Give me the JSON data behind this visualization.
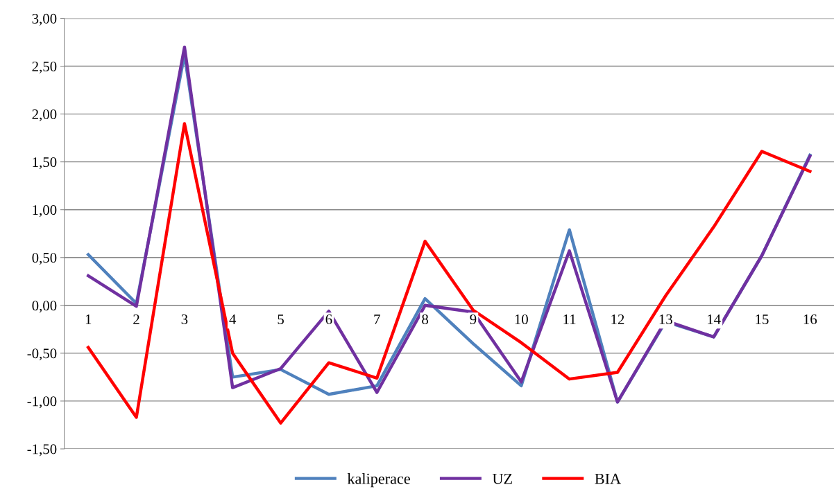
{
  "chart_data": {
    "type": "line",
    "categories": [
      "1",
      "2",
      "3",
      "4",
      "5",
      "6",
      "7",
      "8",
      "9",
      "10",
      "11",
      "12",
      "13",
      "14",
      "15",
      "16"
    ],
    "series": [
      {
        "name": "kaliperace",
        "color": "#4f81bd",
        "values": [
          0.53,
          0.02,
          2.62,
          -0.75,
          -0.67,
          -0.93,
          -0.84,
          0.07,
          -0.4,
          -0.84,
          0.79,
          -1.01,
          -0.17,
          -0.33,
          0.52,
          1.57
        ]
      },
      {
        "name": "UZ",
        "color": "#7030a0",
        "values": [
          0.31,
          -0.01,
          2.7,
          -0.86,
          -0.66,
          -0.06,
          -0.91,
          0.0,
          -0.07,
          -0.8,
          0.57,
          -1.01,
          -0.16,
          -0.33,
          0.52,
          1.56
        ]
      },
      {
        "name": "BIA",
        "color": "#ff0000",
        "values": [
          -0.44,
          -1.17,
          1.9,
          -0.5,
          -1.23,
          -0.6,
          -0.76,
          0.67,
          -0.05,
          -0.39,
          -0.77,
          -0.7,
          0.1,
          0.82,
          1.61,
          1.4
        ]
      }
    ],
    "ylim": [
      -1.5,
      3.0
    ],
    "yticks": [
      {
        "value": -1.5,
        "label": "-1,50"
      },
      {
        "value": -1.0,
        "label": "-1,00"
      },
      {
        "value": -0.5,
        "label": "-0,50"
      },
      {
        "value": 0.0,
        "label": "0,00"
      },
      {
        "value": 0.5,
        "label": "0,50"
      },
      {
        "value": 1.0,
        "label": "1,00"
      },
      {
        "value": 1.5,
        "label": "1,50"
      },
      {
        "value": 2.0,
        "label": "2,00"
      },
      {
        "value": 2.5,
        "label": "2,50"
      },
      {
        "value": 3.0,
        "label": "3,00"
      }
    ],
    "grid": "y",
    "legend": "bottom",
    "marker": "none",
    "line_style": "solid"
  }
}
